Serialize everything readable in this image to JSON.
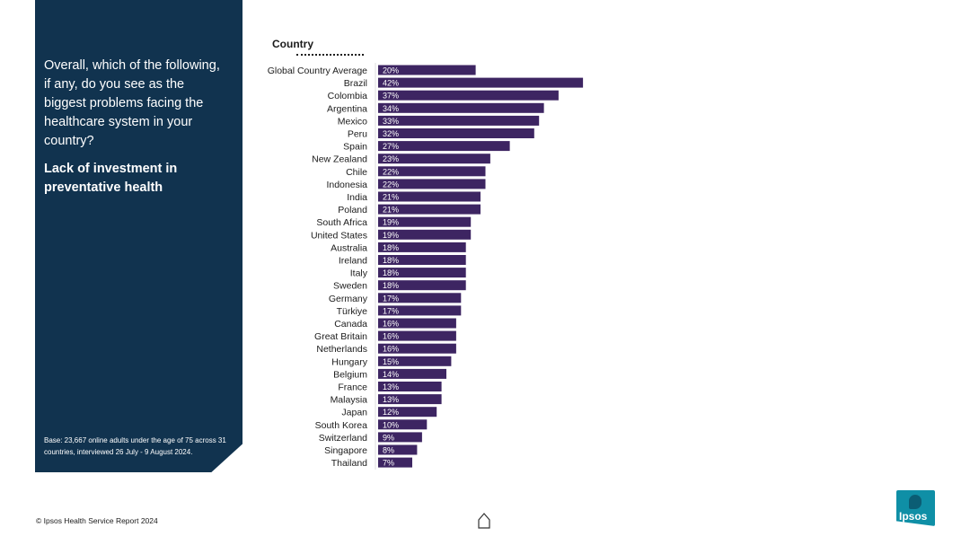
{
  "side_panel": {
    "question": "Overall, which of the following, if any, do you see as the biggest problems facing the healthcare system in your country?",
    "subtitle": "Lack of investment in preventative health",
    "base_note": "Base: 23,667 online adults under the age of 75 across 31 countries, interviewed 26 July - 9 August 2024."
  },
  "chart_header": "Country",
  "footer": {
    "copyright": "© Ipsos Health Service Report 2024",
    "logo_text": "Ipsos"
  },
  "colors": {
    "bar": "#3d2562",
    "panel": "#11334f",
    "logo": "#0f8fa6"
  },
  "chart_data": {
    "type": "bar",
    "orientation": "horizontal",
    "categories": [
      "Global Country Average",
      "Brazil",
      "Colombia",
      "Argentina",
      "Mexico",
      "Peru",
      "Spain",
      "New Zealand",
      "Chile",
      "Indonesia",
      "India",
      "Poland",
      "South Africa",
      "United States",
      "Australia",
      "Ireland",
      "Italy",
      "Sweden",
      "Germany",
      "Türkiye",
      "Canada",
      "Great Britain",
      "Netherlands",
      "Hungary",
      "Belgium",
      "France",
      "Malaysia",
      "Japan",
      "South Korea",
      "Switzerland",
      "Singapore",
      "Thailand"
    ],
    "values": [
      20,
      42,
      37,
      34,
      33,
      32,
      27,
      23,
      22,
      22,
      21,
      21,
      19,
      19,
      18,
      18,
      18,
      18,
      17,
      17,
      16,
      16,
      16,
      15,
      14,
      13,
      13,
      12,
      10,
      9,
      8,
      7
    ],
    "labels": [
      "20%",
      "42%",
      "37%",
      "34%",
      "33%",
      "32%",
      "27%",
      "23%",
      "22%",
      "22%",
      "21%",
      "21%",
      "19%",
      "19%",
      "18%",
      "18%",
      "18%",
      "18%",
      "17%",
      "17%",
      "16%",
      "16%",
      "16%",
      "15%",
      "14%",
      "13%",
      "13%",
      "12%",
      "10%",
      "9%",
      "8%",
      "7%"
    ],
    "value_unit": "%",
    "xlim": [
      0,
      42
    ],
    "grid": false,
    "legend": "none"
  }
}
